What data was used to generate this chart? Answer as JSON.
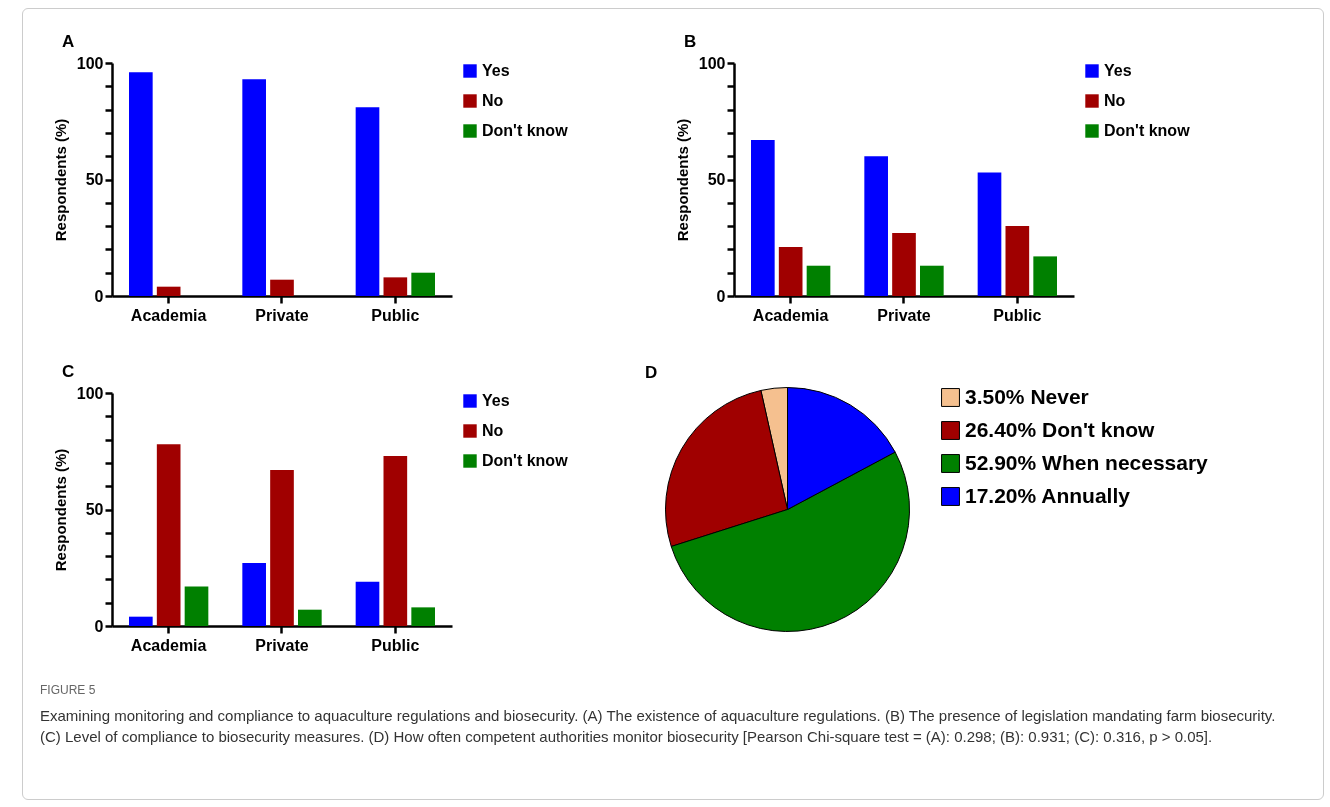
{
  "chart_data": [
    {
      "type": "bar",
      "title": "A",
      "ylabel": "Respondents (%)",
      "categories": [
        "Academia",
        "Private",
        "Public"
      ],
      "series": [
        {
          "name": "Yes",
          "color": "#0000ff",
          "values": [
            96,
            93,
            81
          ]
        },
        {
          "name": "No",
          "color": "#a00000",
          "values": [
            4,
            7,
            8
          ]
        },
        {
          "name": "Don't know",
          "color": "#008000",
          "values": [
            0,
            0,
            10
          ]
        }
      ],
      "ylim": [
        0,
        100
      ],
      "yticks": [
        0,
        {
          "value": 10,
          "label": null
        },
        {
          "value": 20,
          "label": null
        },
        {
          "value": 30,
          "label": null
        },
        {
          "value": 40,
          "label": null
        },
        50,
        {
          "value": 60,
          "label": null
        },
        {
          "value": 70,
          "label": null
        },
        {
          "value": 80,
          "label": null
        },
        {
          "value": 90,
          "label": null
        },
        100
      ],
      "grid": false,
      "legend": "top right"
    },
    {
      "type": "bar",
      "title": "B",
      "ylabel": "Respondents (%)",
      "categories": [
        "Academia",
        "Private",
        "Public"
      ],
      "series": [
        {
          "name": "Yes",
          "color": "#0000ff",
          "values": [
            67,
            60,
            53
          ]
        },
        {
          "name": "No",
          "color": "#a00000",
          "values": [
            21,
            27,
            30
          ]
        },
        {
          "name": "Don't know",
          "color": "#008000",
          "values": [
            13,
            13,
            17
          ]
        }
      ],
      "ylim": [
        0,
        100
      ],
      "yticks": [
        0,
        {
          "value": 10,
          "label": null
        },
        {
          "value": 20,
          "label": null
        },
        {
          "value": 30,
          "label": null
        },
        {
          "value": 40,
          "label": null
        },
        50,
        {
          "value": 60,
          "label": null
        },
        {
          "value": 70,
          "label": null
        },
        {
          "value": 80,
          "label": null
        },
        {
          "value": 90,
          "label": null
        },
        100
      ],
      "grid": false,
      "legend": "top right"
    },
    {
      "type": "bar",
      "title": "C",
      "ylabel": "Respondents (%)",
      "categories": [
        "Academia",
        "Private",
        "Public"
      ],
      "series": [
        {
          "name": "Yes",
          "color": "#0000ff",
          "values": [
            4,
            27,
            19
          ]
        },
        {
          "name": "No",
          "color": "#a00000",
          "values": [
            78,
            67,
            73
          ]
        },
        {
          "name": "Don't know",
          "color": "#008000",
          "values": [
            17,
            7,
            8
          ]
        }
      ],
      "ylim": [
        0,
        100
      ],
      "yticks": [
        0,
        {
          "value": 10,
          "label": null
        },
        {
          "value": 20,
          "label": null
        },
        {
          "value": 30,
          "label": null
        },
        {
          "value": 40,
          "label": null
        },
        50,
        {
          "value": 60,
          "label": null
        },
        {
          "value": 70,
          "label": null
        },
        {
          "value": 80,
          "label": null
        },
        {
          "value": 90,
          "label": null
        },
        100
      ],
      "grid": false,
      "legend": "top right"
    },
    {
      "type": "pie",
      "title": "D",
      "categories": [
        "Never",
        "Don't know",
        "When necessary",
        "Annually"
      ],
      "values": [
        3.5,
        26.4,
        52.9,
        17.2
      ],
      "value_labels": [
        "3.50%",
        "26.40%",
        "52.90%",
        "17.20%"
      ],
      "colors": [
        "#f5c08f",
        "#a00000",
        "#008000",
        "#0000ff"
      ],
      "legend": "right",
      "annotations": [
        "FIGURE 5",
        "Examining monitoring and compliance to aquaculture regulations and biosecurity. (A) The existence of aquaculture regulations. (B) The presence of legislation mandating farm biosecurity. (C) Level of compliance to biosecurity measures. (D) How often competent authorities monitor biosecurity [Pearson Chi-square test = (A): 0.298; (B): 0.931; (C): 0.316, p > 0.05]."
      ]
    }
  ]
}
